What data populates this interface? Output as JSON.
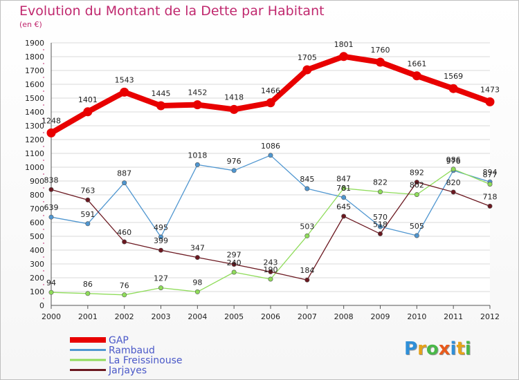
{
  "title": "Evolution du Montant de la Dette par Habitant",
  "subtitle": "(en €)",
  "logo_text": "Proxiti",
  "colors": {
    "title": "#c0286e",
    "grid": "#d9d9d9",
    "axis": "#555555"
  },
  "chart_data": {
    "type": "line",
    "categories": [
      "2000",
      "2001",
      "2002",
      "2003",
      "2004",
      "2005",
      "2006",
      "2007",
      "2008",
      "2009",
      "2010",
      "2011",
      "2012"
    ],
    "ylim": [
      0,
      1900
    ],
    "yticks": [
      0,
      100,
      200,
      300,
      400,
      500,
      600,
      700,
      800,
      900,
      1000,
      1100,
      1200,
      1300,
      1400,
      1500,
      1600,
      1700,
      1800,
      1900
    ],
    "grid": true,
    "legend_position": "bottom-left",
    "series": [
      {
        "name": "GAP",
        "color": "#e80000",
        "values": [
          1248,
          1401,
          1543,
          1445,
          1452,
          1418,
          1466,
          1705,
          1801,
          1760,
          1661,
          1569,
          1473
        ]
      },
      {
        "name": "Rambaud",
        "color": "#4f96d0",
        "values": [
          639,
          591,
          887,
          495,
          1018,
          976,
          1086,
          845,
          781,
          570,
          505,
          976,
          894
        ]
      },
      {
        "name": "La Freissinouse",
        "color": "#8fdc5a",
        "values": [
          94,
          86,
          76,
          127,
          98,
          240,
          190,
          503,
          847,
          822,
          802,
          986,
          877
        ]
      },
      {
        "name": "Jarjayes",
        "color": "#6b1820",
        "values": [
          838,
          763,
          460,
          399,
          347,
          297,
          243,
          184,
          645,
          518,
          892,
          820,
          718
        ]
      }
    ]
  }
}
